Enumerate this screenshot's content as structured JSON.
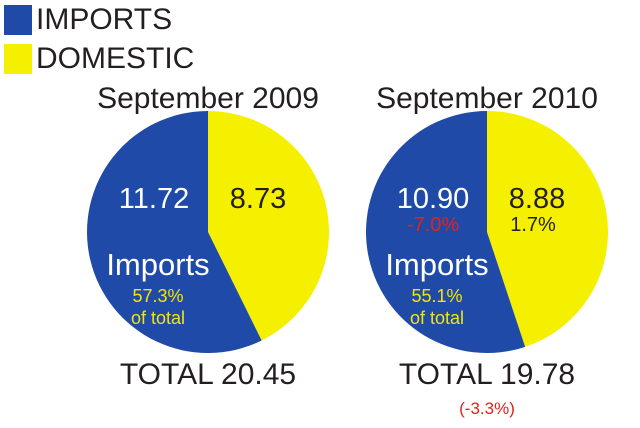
{
  "legend": [
    {
      "label": "IMPORTS",
      "color": "#1f4aa8"
    },
    {
      "label": "DOMESTIC",
      "color": "#f5f000"
    }
  ],
  "chart_data": [
    {
      "type": "pie",
      "title": "September 2009",
      "slices": [
        {
          "name": "IMPORTS",
          "value": 11.72,
          "value_label": "11.72",
          "share_label": "57.3%\nof total",
          "segment_label": "Imports",
          "color": "#1f4aa8"
        },
        {
          "name": "DOMESTIC",
          "value": 8.73,
          "value_label": "8.73",
          "color": "#f5f000"
        }
      ],
      "total_label": "TOTAL 20.45"
    },
    {
      "type": "pie",
      "title": "September 2010",
      "slices": [
        {
          "name": "IMPORTS",
          "value": 10.9,
          "value_label": "10.90",
          "change_label": "-7.0%",
          "share_label": "55.1%\nof total",
          "segment_label": "Imports",
          "color": "#1f4aa8"
        },
        {
          "name": "DOMESTIC",
          "value": 8.88,
          "value_label": "8.88",
          "change_label": "1.7%",
          "color": "#f5f000"
        }
      ],
      "total_label": "TOTAL 19.78",
      "total_change_label": "(-3.3%)"
    }
  ],
  "colors": {
    "text": "#231f20",
    "negative": "#e2231a",
    "share_text": "#f5e50a"
  }
}
